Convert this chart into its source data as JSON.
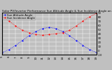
{
  "title": "Solar PV/Inverter Performance Sun Altitude Angle & Sun Incidence Angle on PV Panels",
  "series": [
    {
      "label": "Sun Altitude Angle",
      "color": "#0000ff",
      "x": [
        5,
        6,
        7,
        8,
        9,
        10,
        11,
        12,
        13,
        14,
        15,
        16,
        17,
        18,
        19
      ],
      "y": [
        -5,
        2,
        12,
        24,
        35,
        45,
        52,
        55,
        52,
        45,
        35,
        24,
        12,
        2,
        -5
      ]
    },
    {
      "label": "Sun Incidence Angle",
      "color": "#ff0000",
      "x": [
        5,
        6,
        7,
        8,
        9,
        10,
        11,
        12,
        13,
        14,
        15,
        16,
        17,
        18,
        19
      ],
      "y": [
        80,
        70,
        58,
        48,
        42,
        38,
        36,
        38,
        40,
        42,
        48,
        58,
        70,
        80,
        88
      ]
    }
  ],
  "xlim": [
    5,
    19
  ],
  "ylim": [
    -10,
    90
  ],
  "yticks": [
    -10,
    0,
    10,
    20,
    30,
    40,
    50,
    60,
    70,
    80,
    90
  ],
  "ytick_labels": [
    "-10",
    "0",
    "10",
    "20",
    "30",
    "40",
    "50",
    "60",
    "70",
    "80",
    "90"
  ],
  "xticks": [
    5,
    6,
    7,
    8,
    9,
    10,
    11,
    12,
    13,
    14,
    15,
    16,
    17,
    18,
    19
  ],
  "xtick_labels": [
    "5",
    "6",
    "7",
    "8",
    "9",
    "10",
    "11",
    "12",
    "13",
    "14",
    "15",
    "16",
    "17",
    "18",
    "19"
  ],
  "bg_color": "#c0c0c0",
  "plot_bg_color": "#c0c0c0",
  "grid_color": "#ffffff",
  "title_fontsize": 3.0,
  "tick_fontsize": 2.8,
  "legend_fontsize": 2.8
}
